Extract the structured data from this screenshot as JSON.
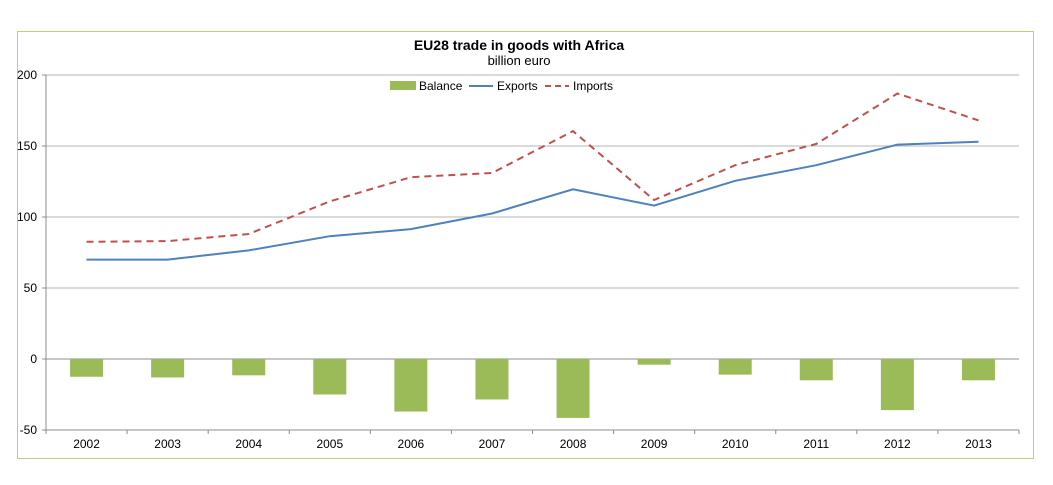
{
  "chart_data": {
    "type": "bar",
    "title": "EU28 trade in goods with Africa",
    "subtitle": "billion euro",
    "xlabel": "",
    "ylabel": "",
    "ylim": [
      -50,
      200
    ],
    "yticks": [
      200,
      150,
      100,
      50,
      0,
      -50
    ],
    "grid": true,
    "legend_position": "top-center",
    "categories": [
      "2002",
      "2003",
      "2004",
      "2005",
      "2006",
      "2007",
      "2008",
      "2009",
      "2010",
      "2011",
      "2012",
      "2013"
    ],
    "series": [
      {
        "name": "Balance",
        "type": "bar",
        "color": "#9bbb59",
        "values": [
          -12.5,
          -13,
          -11.5,
          -25,
          -37,
          -28.5,
          -41.5,
          -4,
          -11,
          -15,
          -36,
          -15
        ]
      },
      {
        "name": "Exports",
        "type": "line",
        "style": "solid",
        "color": "#4f81bd",
        "values": [
          70,
          70,
          76.5,
          86.5,
          91.5,
          102.5,
          119.5,
          108,
          125.5,
          136.5,
          151,
          153
        ]
      },
      {
        "name": "Imports",
        "type": "line",
        "style": "dashed",
        "color": "#c0504d",
        "values": [
          82.5,
          83,
          88,
          111,
          128,
          131,
          160.5,
          112,
          136.5,
          151.5,
          187,
          168
        ]
      }
    ]
  }
}
